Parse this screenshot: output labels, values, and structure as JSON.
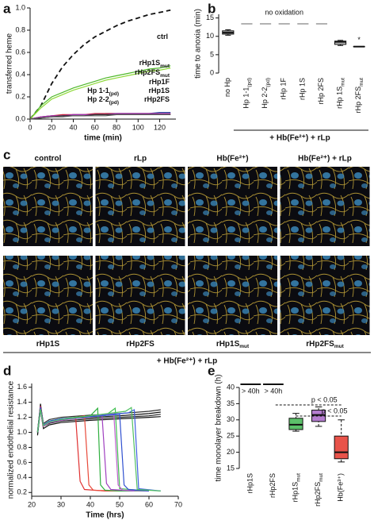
{
  "chart_data": [
    {
      "panel": "a",
      "type": "line",
      "xlabel": "time (min)",
      "ylabel": "transferred heme",
      "x": [
        0,
        10,
        20,
        30,
        40,
        50,
        60,
        70,
        80,
        90,
        100,
        110,
        120,
        130
      ],
      "xlim": [
        0,
        135
      ],
      "xticks": [
        0,
        20,
        40,
        60,
        80,
        100,
        120
      ],
      "ylim": [
        0,
        1
      ],
      "yticks": [
        {
          "value": 0,
          "label": "0.0"
        },
        0.2,
        0.4,
        0.6,
        0.8,
        {
          "value": 1,
          "label": "1.0"
        }
      ],
      "series": [
        {
          "name": "ctrl",
          "color": "#111111",
          "dash": true,
          "values": [
            0,
            0.12,
            0.32,
            0.47,
            0.58,
            0.67,
            0.74,
            0.79,
            0.84,
            0.88,
            0.91,
            0.94,
            0.96,
            0.98
          ]
        },
        {
          "name": "rHp1S",
          "subscript": "mut",
          "color": "#4fb82a",
          "values": [
            0,
            0.12,
            0.2,
            0.24,
            0.28,
            0.31,
            0.34,
            0.37,
            0.39,
            0.41,
            0.43,
            0.45,
            0.46,
            0.48
          ]
        },
        {
          "name": "rHp2FS",
          "subscript": "mut",
          "color": "#8fd93a",
          "values": [
            0,
            0.1,
            0.18,
            0.22,
            0.26,
            0.29,
            0.32,
            0.35,
            0.37,
            0.39,
            0.41,
            0.43,
            0.44,
            0.46
          ]
        },
        {
          "name": "rHp1F",
          "color": "#2a4fa0",
          "values": [
            0,
            0.02,
            0.03,
            0.03,
            0.04,
            0.04,
            0.04,
            0.05,
            0.05,
            0.05,
            0.05,
            0.05,
            0.06,
            0.06
          ]
        },
        {
          "name": "rHp1S",
          "color": "#c8243c",
          "values": [
            0,
            0.02,
            0.03,
            0.04,
            0.04,
            0.04,
            0.05,
            0.05,
            0.05,
            0.05,
            0.05,
            0.05,
            0.05,
            0.05
          ]
        },
        {
          "name": "rHp2FS",
          "color": "#a030b0",
          "values": [
            0,
            0.02,
            0.03,
            0.03,
            0.04,
            0.04,
            0.04,
            0.04,
            0.05,
            0.05,
            0.05,
            0.05,
            0.05,
            0.05
          ]
        },
        {
          "name": "Hp 1-1",
          "subscript": "(pd)",
          "color": "#333333",
          "values": [
            0,
            0.01,
            0.02,
            0.03,
            0.03,
            0.03,
            0.04,
            0.04,
            0.04,
            0.04,
            0.04,
            0.04,
            0.04,
            0.04
          ]
        },
        {
          "name": "Hp 2-2",
          "subscript": "(pd)",
          "color": "#555555",
          "values": [
            0,
            0.01,
            0.02,
            0.02,
            0.03,
            0.03,
            0.03,
            0.03,
            0.04,
            0.04,
            0.04,
            0.04,
            0.04,
            0.04
          ]
        }
      ]
    },
    {
      "panel": "b",
      "type": "box",
      "ylabel": "time to anoxia (min)",
      "categories": [
        "no Hp",
        "Hp 1-1",
        "Hp 2-2",
        "rHp 1F",
        "rHp 1S",
        "rHp 2FS",
        "rHp 1S",
        "rHp 2FS"
      ],
      "category_subscripts": [
        null,
        "(pd)",
        "(pd)",
        null,
        null,
        null,
        "mut",
        "mut"
      ],
      "group_label": "+ Hb(Fe²⁺) + rLp",
      "annotation": "no oxidation",
      "marker": "*",
      "color": "#bdbdbd",
      "ylim": [
        0,
        16
      ],
      "yticks": [
        0,
        5,
        10,
        15
      ],
      "boxes": [
        {
          "min": 10.3,
          "q1": 10.6,
          "median": 11,
          "q3": 11.5,
          "max": 11.8
        },
        null,
        null,
        null,
        null,
        null,
        {
          "min": 7.5,
          "q1": 7.8,
          "median": 8.5,
          "q3": 8.7,
          "max": 8.9
        },
        {
          "min": 7.2,
          "q1": 7.2,
          "median": 7.2,
          "q3": 7.2,
          "max": 7.2
        }
      ]
    },
    {
      "panel": "d",
      "type": "line",
      "xlabel": "Time (hrs)",
      "ylabel": "normalized endothelial resistance",
      "xlim": [
        20,
        70
      ],
      "xticks": [
        20,
        30,
        40,
        50,
        60,
        70
      ],
      "ylim": [
        0.15,
        1.65
      ],
      "yticks": [
        0.2,
        0.4,
        0.6,
        0.8,
        {
          "value": 1,
          "label": "1.0"
        },
        1.2,
        1.4,
        1.6
      ],
      "series": [
        {
          "color": "#111111",
          "x": [
            22,
            23,
            24,
            26,
            30,
            40,
            50,
            60,
            64
          ],
          "values": [
            1.0,
            1.38,
            1.1,
            1.15,
            1.17,
            1.2,
            1.22,
            1.25,
            1.27
          ]
        },
        {
          "color": "#222222",
          "x": [
            22,
            23,
            24,
            26,
            30,
            40,
            50,
            60,
            64
          ],
          "values": [
            0.98,
            1.32,
            1.08,
            1.12,
            1.15,
            1.18,
            1.2,
            1.22,
            1.24
          ]
        },
        {
          "color": "#333333",
          "x": [
            22,
            23,
            24,
            26,
            30,
            40,
            50,
            60,
            64
          ],
          "values": [
            1.02,
            1.35,
            1.12,
            1.17,
            1.2,
            1.23,
            1.25,
            1.28,
            1.3
          ]
        },
        {
          "color": "#111111",
          "x": [
            22,
            23,
            24,
            26,
            30,
            40,
            50,
            60,
            64
          ],
          "values": [
            0.96,
            1.3,
            1.05,
            1.1,
            1.13,
            1.16,
            1.18,
            1.2,
            1.21
          ]
        },
        {
          "color": "#e03030",
          "x": [
            22,
            23,
            24,
            26,
            30,
            35,
            36.5,
            38,
            45,
            56
          ],
          "values": [
            1.0,
            1.35,
            1.1,
            1.15,
            1.17,
            1.2,
            0.35,
            0.24,
            0.22,
            0.22
          ]
        },
        {
          "color": "#e84a3a",
          "x": [
            22,
            23,
            24,
            26,
            30,
            38,
            39.5,
            41,
            48,
            56
          ],
          "values": [
            1.0,
            1.3,
            1.08,
            1.14,
            1.16,
            1.22,
            0.3,
            0.23,
            0.22,
            0.22
          ]
        },
        {
          "color": "#30b040",
          "x": [
            22,
            23,
            24,
            26,
            30,
            40,
            42.5,
            43.5,
            45,
            50,
            60
          ],
          "values": [
            1.0,
            1.32,
            1.1,
            1.15,
            1.18,
            1.22,
            1.32,
            0.3,
            0.23,
            0.22,
            0.22
          ]
        },
        {
          "color": "#40c050",
          "x": [
            22,
            23,
            24,
            26,
            30,
            45,
            48.5,
            50,
            60
          ],
          "values": [
            1.0,
            1.3,
            1.1,
            1.15,
            1.18,
            1.22,
            1.32,
            0.25,
            0.22
          ]
        },
        {
          "color": "#a040c0",
          "x": [
            22,
            23,
            24,
            26,
            30,
            44,
            45.5,
            47,
            55
          ],
          "values": [
            1.0,
            1.34,
            1.1,
            1.14,
            1.17,
            1.22,
            0.32,
            0.24,
            0.22
          ]
        },
        {
          "color": "#c060d0",
          "x": [
            22,
            23,
            24,
            26,
            30,
            48,
            49.5,
            51,
            60
          ],
          "values": [
            1.0,
            1.3,
            1.08,
            1.13,
            1.16,
            1.25,
            0.3,
            0.23,
            0.22
          ]
        },
        {
          "color": "#3050d0",
          "x": [
            22,
            23,
            24,
            26,
            30,
            50,
            51.5,
            53,
            60
          ],
          "values": [
            1.0,
            1.33,
            1.1,
            1.15,
            1.18,
            1.24,
            0.3,
            0.24,
            0.22
          ]
        },
        {
          "color": "#4060e0",
          "x": [
            22,
            23,
            24,
            26,
            30,
            53,
            55,
            56.5,
            64
          ],
          "values": [
            1.0,
            1.3,
            1.1,
            1.14,
            1.17,
            1.26,
            1.3,
            0.25,
            0.22
          ]
        },
        {
          "color": "#50c060",
          "x": [
            22,
            23,
            24,
            26,
            30,
            52,
            54,
            56,
            64
          ],
          "values": [
            1.0,
            1.31,
            1.09,
            1.14,
            1.17,
            1.28,
            1.33,
            0.24,
            0.22
          ]
        }
      ]
    },
    {
      "panel": "e",
      "type": "box",
      "ylabel": "time monolayer breakdown (h)",
      "categories": [
        "rHp1S",
        "rHp2FS",
        "rHp1S",
        "rHp2FS",
        "Hb(Fe³⁺)"
      ],
      "category_subscripts": [
        null,
        null,
        "mut",
        "mut",
        null
      ],
      "ylim": [
        15,
        40
      ],
      "yticks": [
        15,
        20,
        25,
        30,
        35,
        40
      ],
      "annotations": [
        "> 40h",
        "> 40h",
        "p < 0.05",
        "p < 0.05"
      ],
      "boxes": [
        null,
        null,
        {
          "min": 26.5,
          "q1": 27,
          "median": 28.5,
          "q3": 30.5,
          "max": 32,
          "color": "#5cc06a"
        },
        {
          "min": 28,
          "q1": 29.5,
          "median": 31.5,
          "q3": 33,
          "max": 34,
          "color": "#b57dd0"
        },
        {
          "min": 17,
          "q1": 18,
          "median": 20,
          "q3": 25,
          "max": 30,
          "color": "#e8534a"
        }
      ]
    }
  ],
  "image_panel": {
    "panel": "c",
    "top_labels": [
      "control",
      "rLp",
      "Hb(Fe²⁺)",
      "Hb(Fe²⁺) + rLp"
    ],
    "bottom_labels": [
      "rHp1S",
      "rHp2FS",
      "rHp1S",
      "rHp2FS"
    ],
    "bottom_subscripts": [
      null,
      null,
      "mut",
      "mut"
    ],
    "group_label": "+ Hb(Fe²⁺) + rLp"
  }
}
